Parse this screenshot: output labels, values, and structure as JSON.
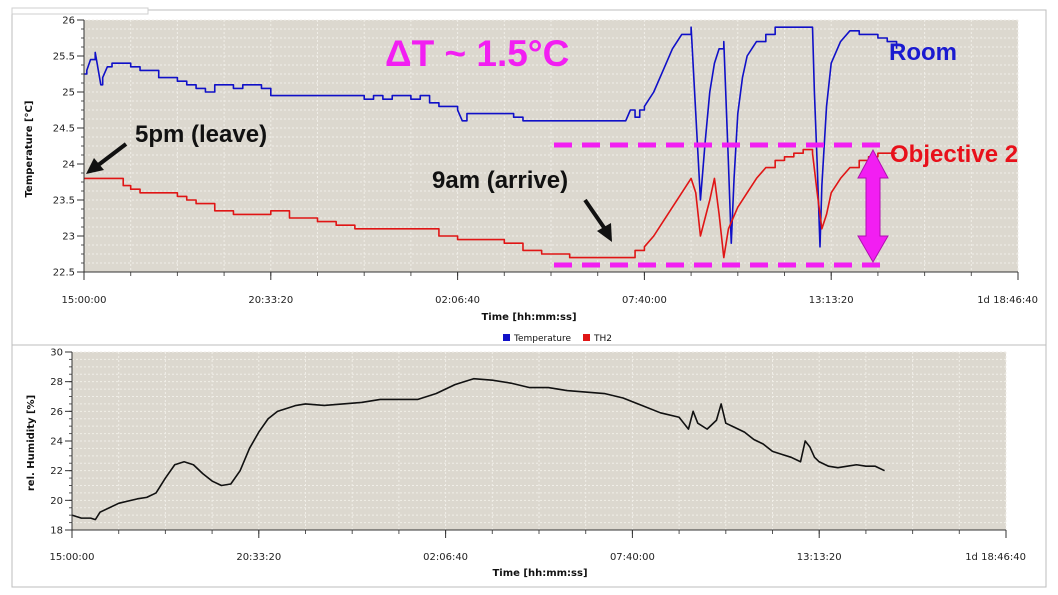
{
  "chart_data": [
    {
      "type": "line",
      "title": "",
      "xlabel": "Time [hh:mm:ss]",
      "ylabel": "Temperature [°C]",
      "ylim": [
        22.5,
        26
      ],
      "xlim": [
        0,
        100000
      ],
      "x_ticks": [
        {
          "v": 0,
          "label": "15:00:00"
        },
        {
          "v": 20000,
          "label": "20:33:20"
        },
        {
          "v": 40000,
          "label": "02:06:40"
        },
        {
          "v": 60000,
          "label": "07:40:00"
        },
        {
          "v": 80000,
          "label": "13:13:20"
        },
        {
          "v": 100000,
          "label": "1d 18:46:40"
        }
      ],
      "y_ticks": [
        22.5,
        23,
        23.5,
        24,
        24.5,
        25,
        25.5,
        26
      ],
      "grid": true,
      "legend": {
        "position": "bottom-center",
        "entries": [
          "Temperature",
          "TH2"
        ]
      },
      "series": [
        {
          "name": "Temperature",
          "color": "#1010c8",
          "x": [
            0,
            300,
            700,
            1200,
            1800,
            2000,
            2500,
            3000,
            4000,
            5000,
            6000,
            7000,
            8000,
            9000,
            10000,
            11000,
            12000,
            13000,
            14000,
            15000,
            16000,
            17000,
            18000,
            19000,
            20000,
            22000,
            25000,
            28000,
            30000,
            31000,
            32000,
            33000,
            34000,
            35000,
            36000,
            37000,
            38000,
            40000,
            40500,
            41000,
            42000,
            45000,
            46000,
            47000,
            48000,
            49000,
            50000,
            52000,
            54000,
            56000,
            58000,
            58500,
            59000,
            59500,
            60000,
            61000,
            62000,
            63000,
            64000,
            65000,
            65500,
            66000,
            66500,
            67000,
            67500,
            68000,
            68500,
            69000,
            69300,
            69600,
            70000,
            70500,
            71000,
            72000,
            73000,
            74000,
            75000,
            76000,
            77000,
            78000,
            78200,
            78500,
            78800,
            79000,
            79500,
            80000,
            81000,
            82000,
            83000,
            84000,
            85000,
            86000,
            87000
          ],
          "y": [
            25.25,
            25.3,
            25.45,
            25.55,
            25.1,
            25.2,
            25.35,
            25.4,
            25.4,
            25.35,
            25.3,
            25.3,
            25.2,
            25.2,
            25.15,
            25.1,
            25.05,
            25.0,
            25.1,
            25.1,
            25.05,
            25.1,
            25.1,
            25.05,
            24.95,
            24.95,
            24.95,
            24.95,
            24.9,
            24.95,
            24.9,
            24.95,
            24.95,
            24.9,
            24.95,
            24.85,
            24.8,
            24.75,
            24.6,
            24.7,
            24.7,
            24.7,
            24.65,
            24.6,
            24.6,
            24.6,
            24.6,
            24.6,
            24.6,
            24.6,
            24.6,
            24.75,
            24.65,
            24.75,
            24.8,
            25.0,
            25.3,
            25.6,
            25.8,
            25.9,
            24.7,
            23.5,
            24.3,
            25.0,
            25.4,
            25.6,
            25.7,
            24.0,
            22.9,
            23.8,
            24.7,
            25.2,
            25.5,
            25.7,
            25.8,
            25.9,
            25.9,
            25.9,
            25.9,
            25.9,
            25.0,
            24.0,
            22.85,
            23.7,
            24.8,
            25.4,
            25.7,
            25.85,
            25.8,
            25.8,
            25.75,
            25.7,
            25.6
          ]
        },
        {
          "name": "TH2",
          "color": "#e01515",
          "x": [
            0,
            4000,
            4200,
            5000,
            6000,
            8000,
            10000,
            11000,
            12000,
            14000,
            16000,
            18000,
            20000,
            22000,
            25000,
            27000,
            29000,
            32000,
            35000,
            38000,
            40000,
            43000,
            45000,
            47000,
            49000,
            50000,
            52000,
            54000,
            56000,
            58000,
            59000,
            60000,
            61000,
            62000,
            63000,
            64000,
            65000,
            65500,
            66000,
            67000,
            67500,
            68000,
            68500,
            69000,
            70000,
            71000,
            72000,
            73000,
            74000,
            75000,
            76000,
            77000,
            78000,
            78500,
            79000,
            79500,
            80000,
            81000,
            82000,
            83000,
            84000,
            85000,
            86000,
            87000
          ],
          "y": [
            23.8,
            23.8,
            23.7,
            23.65,
            23.6,
            23.6,
            23.55,
            23.5,
            23.45,
            23.35,
            23.3,
            23.3,
            23.35,
            23.25,
            23.2,
            23.15,
            23.1,
            23.1,
            23.1,
            23.0,
            22.95,
            22.95,
            22.9,
            22.8,
            22.75,
            22.75,
            22.7,
            22.7,
            22.7,
            22.7,
            22.8,
            22.85,
            23.0,
            23.2,
            23.4,
            23.6,
            23.8,
            23.6,
            23.0,
            23.5,
            23.8,
            23.3,
            22.7,
            23.1,
            23.4,
            23.6,
            23.8,
            23.95,
            24.05,
            24.1,
            24.15,
            24.2,
            24.15,
            23.6,
            23.1,
            23.3,
            23.6,
            23.8,
            23.95,
            24.05,
            24.1,
            24.15,
            24.15,
            24.15
          ]
        }
      ]
    },
    {
      "type": "line",
      "title": "",
      "xlabel": "Time [hh:mm:ss]",
      "ylabel": "rel. Humidity [%]",
      "ylim": [
        18,
        30
      ],
      "xlim": [
        0,
        100000
      ],
      "x_ticks": [
        {
          "v": 0,
          "label": "15:00:00"
        },
        {
          "v": 20000,
          "label": "20:33:20"
        },
        {
          "v": 40000,
          "label": "02:06:40"
        },
        {
          "v": 60000,
          "label": "07:40:00"
        },
        {
          "v": 80000,
          "label": "13:13:20"
        },
        {
          "v": 100000,
          "label": "1d 18:46:40"
        }
      ],
      "y_ticks": [
        18,
        20,
        22,
        24,
        26,
        28,
        30
      ],
      "grid": true,
      "series": [
        {
          "color": "#111111",
          "x": [
            0,
            1000,
            2000,
            2500,
            3000,
            5000,
            7000,
            8000,
            9000,
            10000,
            11000,
            12000,
            13000,
            14000,
            15000,
            16000,
            17000,
            18000,
            19000,
            20000,
            21000,
            22000,
            23000,
            24000,
            25000,
            27000,
            29000,
            31000,
            33000,
            35000,
            37000,
            39000,
            41000,
            43000,
            45000,
            47000,
            49000,
            51000,
            53000,
            55000,
            57000,
            59000,
            61000,
            63000,
            65000,
            66000,
            66500,
            67000,
            68000,
            69000,
            69500,
            70000,
            71000,
            72000,
            73000,
            74000,
            75000,
            76000,
            77000,
            78000,
            78500,
            79000,
            79500,
            80000,
            81000,
            82000,
            83000,
            84000,
            85000,
            86000,
            87000
          ],
          "y": [
            19.0,
            18.8,
            18.8,
            18.7,
            19.2,
            19.8,
            20.1,
            20.2,
            20.5,
            21.5,
            22.4,
            22.6,
            22.4,
            21.8,
            21.3,
            21.0,
            21.1,
            22.0,
            23.5,
            24.6,
            25.5,
            26.0,
            26.2,
            26.4,
            26.5,
            26.4,
            26.5,
            26.6,
            26.8,
            26.8,
            26.8,
            27.2,
            27.8,
            28.2,
            28.1,
            27.9,
            27.6,
            27.6,
            27.4,
            27.3,
            27.2,
            26.9,
            26.4,
            25.9,
            25.6,
            24.8,
            26.0,
            25.2,
            24.8,
            25.4,
            26.5,
            25.2,
            24.9,
            24.6,
            24.1,
            23.8,
            23.3,
            23.1,
            22.9,
            22.6,
            24.0,
            23.6,
            22.9,
            22.6,
            22.3,
            22.2,
            22.3,
            22.4,
            22.3,
            22.3,
            22.0
          ]
        }
      ]
    }
  ],
  "annotations": {
    "delta": "ΔT ~ 1.5°C",
    "room": "Room",
    "leave": "5pm (leave)",
    "arrive": "9am (arrive)",
    "objective": "Objective 2"
  },
  "colors": {
    "plot_bg": "#dcd8cf",
    "grid": "#f0eee8",
    "magenta": "#f21ef2",
    "room_text": "#1a1ad0",
    "objective_text": "#e8101a"
  }
}
